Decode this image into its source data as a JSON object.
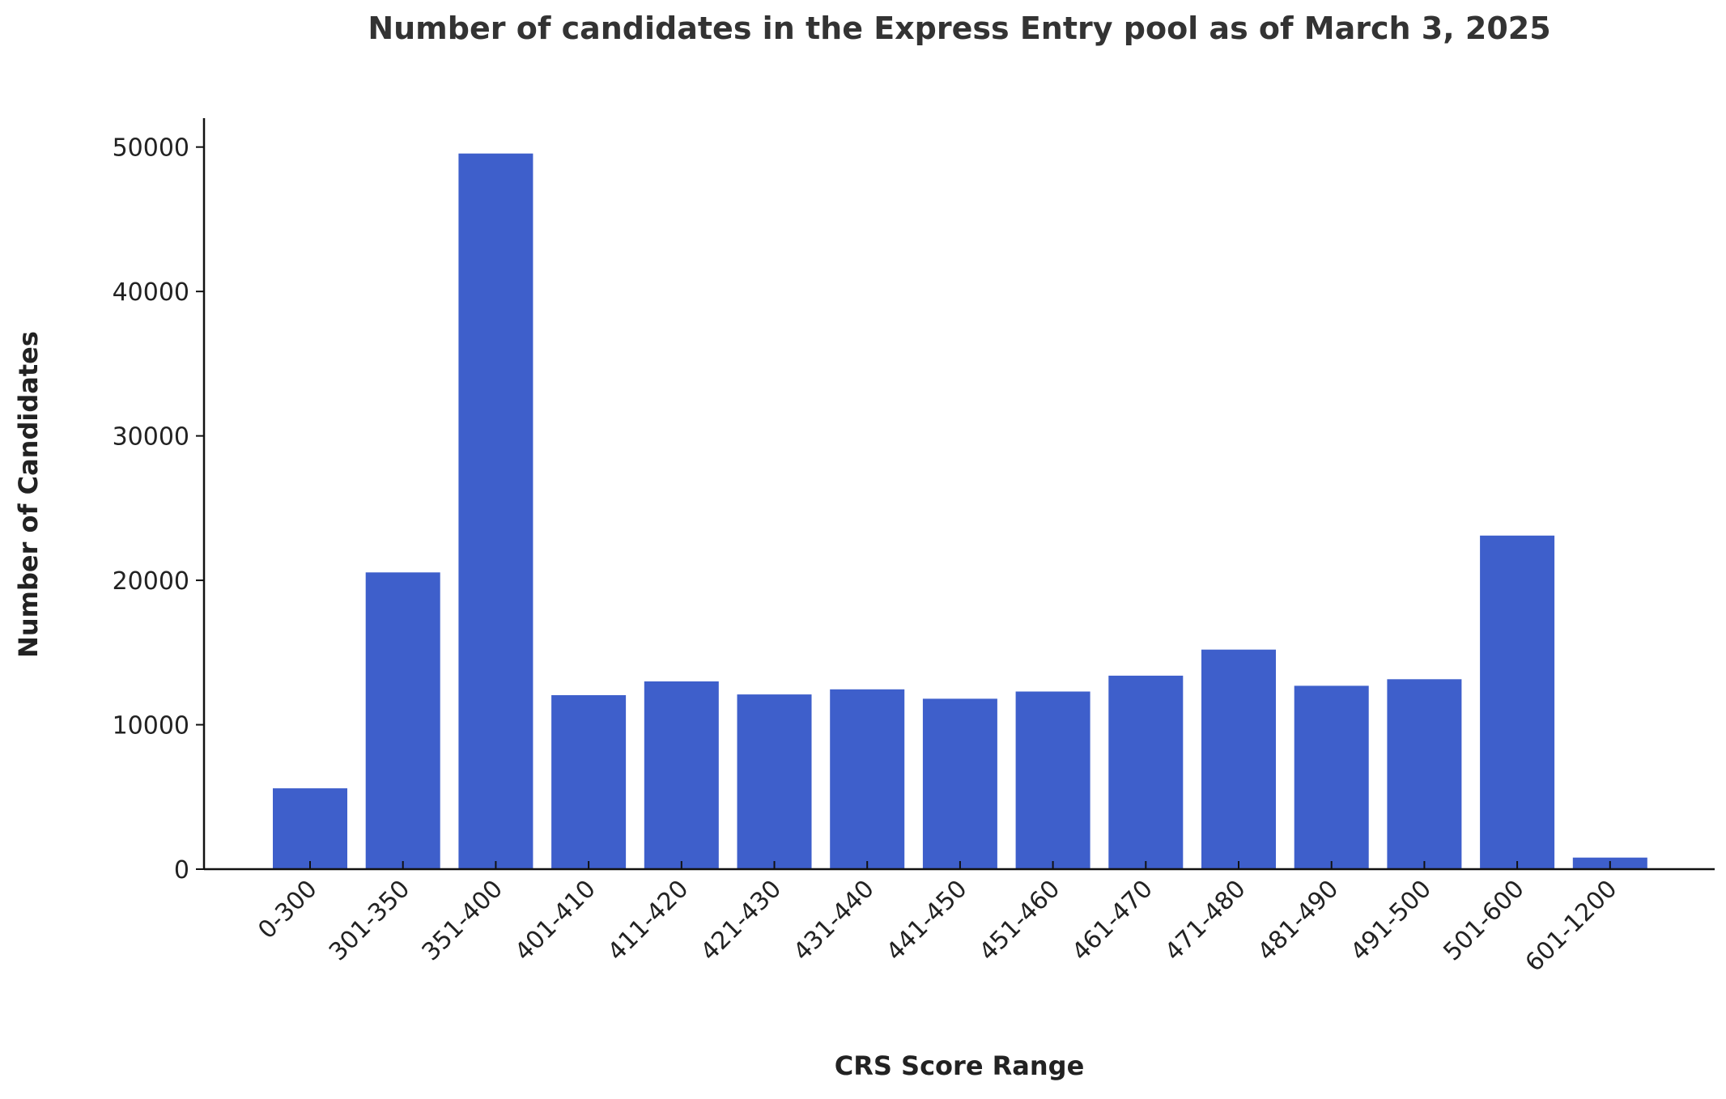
{
  "chart_data": {
    "type": "bar",
    "title": "Number of candidates in the Express Entry pool as of March 3, 2025",
    "xlabel": "CRS Score Range",
    "ylabel": "Number of Candidates",
    "categories": [
      "0-300",
      "301-350",
      "351-400",
      "401-410",
      "411-420",
      "421-430",
      "431-440",
      "441-450",
      "451-460",
      "461-470",
      "471-480",
      "481-490",
      "491-500",
      "501-600",
      "601-1200"
    ],
    "values": [
      5600,
      20550,
      49550,
      12050,
      13000,
      12100,
      12450,
      11800,
      12300,
      13400,
      15200,
      12700,
      13150,
      23100,
      800
    ],
    "ylim": [
      0,
      52000
    ],
    "yticks": [
      0,
      10000,
      20000,
      30000,
      40000,
      50000
    ],
    "grid": false,
    "legend": "none",
    "bar_color": "#3e5fcb",
    "text_color": "#222222",
    "title_color": "#333333"
  }
}
